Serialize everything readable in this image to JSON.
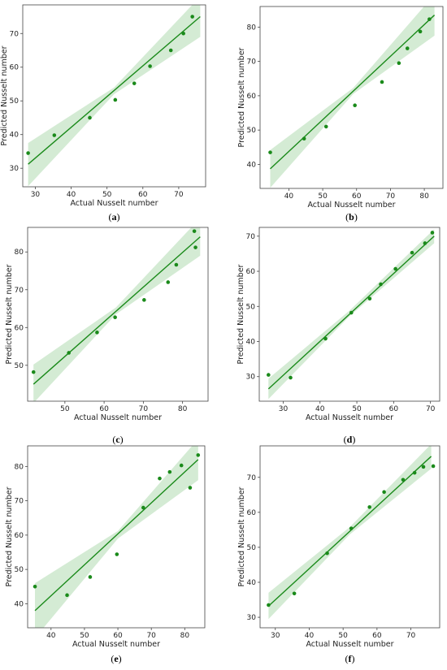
{
  "colors": {
    "accent": "#1a8a1a",
    "band": "#cce8cc",
    "point": "#1a8a1a"
  },
  "chart_data": [
    {
      "type": "scatter",
      "panel": "(a)",
      "xlabel": "Actual Nusselt number",
      "ylabel": "Predicted Nusselt number",
      "xlim": [
        26.5,
        77.5
      ],
      "ylim": [
        24.5,
        78.5
      ],
      "xticks": [
        30,
        40,
        50,
        60,
        70
      ],
      "yticks": [
        30,
        40,
        50,
        60,
        70
      ],
      "points": [
        [
          28,
          34.5
        ],
        [
          35.3,
          39.8
        ],
        [
          45.2,
          45
        ],
        [
          52.3,
          50.3
        ],
        [
          57.6,
          55.2
        ],
        [
          62,
          60.3
        ],
        [
          67.8,
          65
        ],
        [
          71.3,
          70
        ],
        [
          73.8,
          75
        ]
      ],
      "fit": [
        [
          28,
          31.2
        ],
        [
          76,
          75
        ]
      ],
      "band": {
        "lower": [
          [
            28,
            24.7
          ],
          [
            52,
            52
          ],
          [
            76,
            69
          ]
        ],
        "upper": [
          [
            28,
            37.5
          ],
          [
            52,
            54
          ],
          [
            76,
            81
          ]
        ]
      }
    },
    {
      "type": "scatter",
      "panel": "(b)",
      "xlabel": "Actual Nusselt number",
      "ylabel": "Predicted Nusselt number",
      "xlim": [
        31.5,
        85.5
      ],
      "ylim": [
        33,
        86
      ],
      "xticks": [
        40,
        50,
        60,
        70,
        80
      ],
      "yticks": [
        40,
        50,
        60,
        70,
        80
      ],
      "points": [
        [
          34.5,
          43.5
        ],
        [
          44.5,
          47.5
        ],
        [
          51,
          51
        ],
        [
          59.5,
          57.2
        ],
        [
          67.5,
          64
        ],
        [
          72.5,
          69.5
        ],
        [
          75,
          73.8
        ],
        [
          78.8,
          78.7
        ],
        [
          81.5,
          82.3
        ]
      ],
      "fit": [
        [
          34.5,
          38.7
        ],
        [
          83,
          83.5
        ]
      ],
      "band": {
        "lower": [
          [
            34.5,
            33.2
          ],
          [
            59,
            60.5
          ],
          [
            83,
            77.5
          ]
        ],
        "upper": [
          [
            34.5,
            44.2
          ],
          [
            59,
            62.3
          ],
          [
            83,
            89.5
          ]
        ]
      }
    },
    {
      "type": "scatter",
      "panel": "(c)",
      "xlabel": "Actual Nusselt number",
      "ylabel": "Predicted Nusselt number",
      "xlim": [
        40.5,
        86.5
      ],
      "ylim": [
        40.5,
        86.5
      ],
      "xticks": [
        50,
        60,
        70,
        80
      ],
      "yticks": [
        50,
        60,
        70,
        80
      ],
      "points": [
        [
          42,
          48.2
        ],
        [
          51,
          53.3
        ],
        [
          58.2,
          58.7
        ],
        [
          62.8,
          62.7
        ],
        [
          70.2,
          67.3
        ],
        [
          76.3,
          72
        ],
        [
          78.4,
          76.6
        ],
        [
          83,
          85.5
        ],
        [
          83.3,
          81.2
        ]
      ],
      "fit": [
        [
          42,
          45
        ],
        [
          84.5,
          84
        ]
      ],
      "band": {
        "lower": [
          [
            42,
            40
          ],
          [
            63,
            63.5
          ],
          [
            84.5,
            79
          ]
        ],
        "upper": [
          [
            42,
            50.2
          ],
          [
            63,
            65.3
          ],
          [
            84.5,
            89
          ]
        ]
      }
    },
    {
      "type": "scatter",
      "panel": "(d)",
      "xlabel": "Actual Nusselt number",
      "ylabel": "Predicted Nusselt number",
      "xlim": [
        23.5,
        72.5
      ],
      "ylim": [
        23,
        72.5
      ],
      "xticks": [
        30,
        40,
        50,
        60,
        70
      ],
      "yticks": [
        30,
        40,
        50,
        60,
        70
      ],
      "points": [
        [
          26,
          30.5
        ],
        [
          32,
          29.7
        ],
        [
          41.5,
          40.8
        ],
        [
          48.5,
          48.2
        ],
        [
          53.5,
          52.2
        ],
        [
          56.5,
          56.3
        ],
        [
          60.5,
          60.7
        ],
        [
          65,
          65.3
        ],
        [
          68.5,
          68
        ],
        [
          70.5,
          71
        ]
      ],
      "fit": [
        [
          26,
          26.5
        ],
        [
          71,
          70
        ]
      ],
      "band": {
        "lower": [
          [
            26,
            23.6
          ],
          [
            48,
            47.2
          ],
          [
            71,
            68
          ]
        ],
        "upper": [
          [
            26,
            29.4
          ],
          [
            48,
            48.8
          ],
          [
            71,
            72
          ]
        ]
      }
    },
    {
      "type": "scatter",
      "panel": "(e)",
      "xlabel": "Actual Nusselt number",
      "ylabel": "Predicted Nusselt number",
      "xlim": [
        33,
        86
      ],
      "ylim": [
        33,
        86
      ],
      "xticks": [
        40,
        50,
        60,
        70,
        80
      ],
      "yticks": [
        40,
        50,
        60,
        70,
        80
      ],
      "points": [
        [
          35.2,
          45
        ],
        [
          44.8,
          42.5
        ],
        [
          51.7,
          47.8
        ],
        [
          59.7,
          54.4
        ],
        [
          67.6,
          68
        ],
        [
          72.5,
          76.5
        ],
        [
          75.5,
          78.4
        ],
        [
          79,
          80.3
        ],
        [
          81.6,
          73.8
        ],
        [
          84,
          83.3
        ]
      ],
      "fit": [
        [
          35.2,
          38
        ],
        [
          84,
          82
        ]
      ],
      "band": {
        "lower": [
          [
            35.2,
            30
          ],
          [
            60,
            59
          ],
          [
            84,
            76
          ]
        ],
        "upper": [
          [
            35.2,
            46
          ],
          [
            60,
            61.2
          ],
          [
            84,
            88
          ]
        ]
      }
    },
    {
      "type": "scatter",
      "panel": "(f)",
      "xlabel": "Actual Nusselt number",
      "ylabel": "Predicted Nusselt number",
      "xlim": [
        25.5,
        78.5
      ],
      "ylim": [
        27,
        79
      ],
      "xticks": [
        30,
        40,
        50,
        60,
        70
      ],
      "yticks": [
        30,
        40,
        50,
        60,
        70
      ],
      "points": [
        [
          28,
          33.5
        ],
        [
          35.6,
          36.8
        ],
        [
          45.3,
          48.3
        ],
        [
          52.4,
          55.4
        ],
        [
          57.8,
          61.5
        ],
        [
          62.1,
          65.8
        ],
        [
          67.7,
          69.3
        ],
        [
          71.1,
          71.3
        ],
        [
          73.7,
          73
        ],
        [
          76.6,
          73.2
        ]
      ],
      "fit": [
        [
          28,
          33.2
        ],
        [
          76,
          76
        ]
      ],
      "band": {
        "lower": [
          [
            28,
            29.5
          ],
          [
            52,
            53.7
          ],
          [
            76,
            72.5
          ]
        ],
        "upper": [
          [
            28,
            37
          ],
          [
            52,
            55.8
          ],
          [
            76,
            79.5
          ]
        ]
      }
    }
  ]
}
